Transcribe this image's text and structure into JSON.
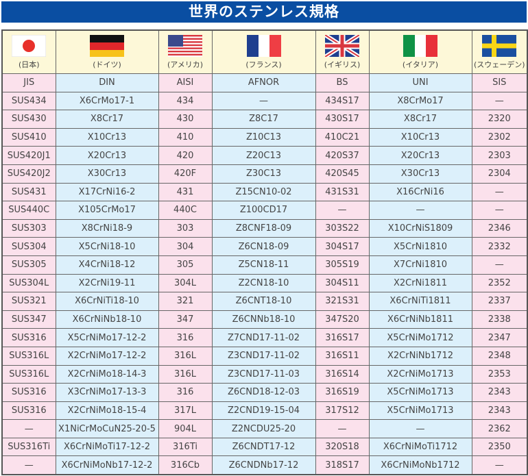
{
  "title": "世界のステンレス規格",
  "columns": [
    {
      "country": "(日本)",
      "flag": "japan-flag-icon",
      "standard": "JIS"
    },
    {
      "country": "(ドイツ)",
      "flag": "germany-flag-icon",
      "standard": "DIN"
    },
    {
      "country": "(アメリカ)",
      "flag": "usa-flag-icon",
      "standard": "AISI"
    },
    {
      "country": "(フランス)",
      "flag": "france-flag-icon",
      "standard": "AFNOR"
    },
    {
      "country": "(イギリス)",
      "flag": "uk-flag-icon",
      "standard": "BS"
    },
    {
      "country": "(イタリア)",
      "flag": "italy-flag-icon",
      "standard": "UNI"
    },
    {
      "country": "(スウェーデン)",
      "flag": "sweden-flag-icon",
      "standard": "SIS"
    }
  ],
  "colors": {
    "title_bg": "#0a4ea2",
    "pink": "#fbe1ec",
    "blue": "#dcf0fb",
    "flag_row": "#fdf8d8"
  },
  "rows": [
    [
      "SUS434",
      "X6CrMo17-1",
      "434",
      "—",
      "434S17",
      "X8CrMo17",
      "—"
    ],
    [
      "SUS430",
      "X8Cr17",
      "430",
      "Z8C17",
      "430S17",
      "X8Cr17",
      "2320"
    ],
    [
      "SUS410",
      "X10Cr13",
      "410",
      "Z10C13",
      "410C21",
      "X10Cr13",
      "2302"
    ],
    [
      "SUS420J1",
      "X20Cr13",
      "420",
      "Z20C13",
      "420S37",
      "X20Cr13",
      "2303"
    ],
    [
      "SUS420J2",
      "X30Cr13",
      "420F",
      "Z30C13",
      "420S45",
      "X30Cr13",
      "2304"
    ],
    [
      "SUS431",
      "X17CrNi16-2",
      "431",
      "Z15CN10-02",
      "431S31",
      "X16CrNi16",
      "—"
    ],
    [
      "SUS440C",
      "X105CrMo17",
      "440C",
      "Z100CD17",
      "—",
      "—",
      "—"
    ],
    [
      "SUS303",
      "X8CrNi18-9",
      "303",
      "Z8CNF18-09",
      "303S22",
      "X10CrNiS1809",
      "2346"
    ],
    [
      "SUS304",
      "X5CrNi18-10",
      "304",
      "Z6CN18-09",
      "304S17",
      "X5CrNi1810",
      "2332"
    ],
    [
      "SUS305",
      "X4CrNi18-12",
      "305",
      "Z5CN18-11",
      "305S19",
      "X7CrNi1810",
      "—"
    ],
    [
      "SUS304L",
      "X2CrNi19-11",
      "304L",
      "Z2CN18-10",
      "304S11",
      "X2CrNi1811",
      "2352"
    ],
    [
      "SUS321",
      "X6CrNiTi18-10",
      "321",
      "Z6CNT18-10",
      "321S31",
      "X6CrNiTi1811",
      "2337"
    ],
    [
      "SUS347",
      "X6CrNiNb18-10",
      "347",
      "Z6CNNb18-10",
      "347S20",
      "X6CrNiNb1811",
      "2338"
    ],
    [
      "SUS316",
      "X5CrNiMo17-12-2",
      "316",
      "Z7CND17-11-02",
      "316S17",
      "X5CrNiMo1712",
      "2347"
    ],
    [
      "SUS316L",
      "X2CrNiMo17-12-2",
      "316L",
      "Z3CND17-11-02",
      "316S11",
      "X2CrNiNb1712",
      "2348"
    ],
    [
      "SUS316L",
      "X2CrNiMo18-14-3",
      "316L",
      "Z3CND17-11-03",
      "316S14",
      "X2CrNiMo1713",
      "2353"
    ],
    [
      "SUS316",
      "X3CrNiMo17-13-3",
      "316",
      "Z6CND18-12-03",
      "316S19",
      "X5CrNiMo1713",
      "2343"
    ],
    [
      "SUS316",
      "X2CrNiMo18-15-4",
      "317L",
      "Z2CND19-15-04",
      "317S12",
      "X5CrNiMo1713",
      "2343"
    ],
    [
      "—",
      "X1NiCrMoCuN25-20-5",
      "904L",
      "Z2NCDU25-20",
      "—",
      "—",
      "2362"
    ],
    [
      "SUS316Ti",
      "X6CrNiMoTi17-12-2",
      "316Ti",
      "Z6CNDT17-12",
      "320S18",
      "X6CrNiMoTi1712",
      "2350"
    ],
    [
      "—",
      "X6CrNiMoNb17-12-2",
      "316Cb",
      "Z6CNDNb17-12",
      "318S17",
      "X6CrNiMoNb1712",
      "—"
    ]
  ]
}
